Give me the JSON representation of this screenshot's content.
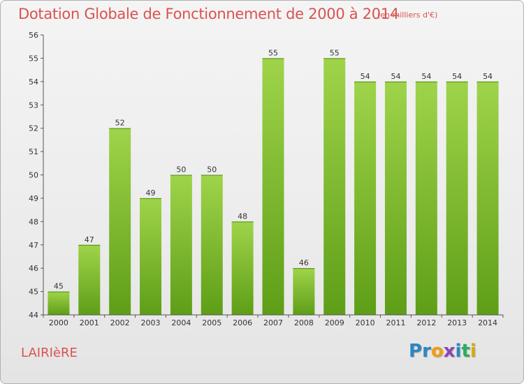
{
  "header": {
    "title": "Dotation Globale de Fonctionnement de 2000 à 2014",
    "subtitle": "(en milliers d'€)"
  },
  "footer": {
    "commune": "LAIRIèRE",
    "brand_letters": [
      "P",
      "r",
      "o",
      "x",
      "i",
      "t",
      "i"
    ],
    "brand_colors": [
      "#2e86c1",
      "#2e86c1",
      "#f39c12",
      "#8e44ad",
      "#2e86c1",
      "#27ae60",
      "#d4ac0d"
    ]
  },
  "colors": {
    "bar_light": "#9fd44a",
    "bar_dark": "#5e9e17",
    "axis": "#555555",
    "grid": "#d0d0d0",
    "text": "#333333"
  },
  "chart_data": {
    "type": "bar",
    "title": "Dotation Globale de Fonctionnement de 2000 à 2014",
    "subtitle": "(en milliers d'€)",
    "categories": [
      "2000",
      "2001",
      "2002",
      "2003",
      "2004",
      "2005",
      "2006",
      "2007",
      "2008",
      "2009",
      "2010",
      "2011",
      "2012",
      "2013",
      "2014"
    ],
    "values": [
      45,
      47,
      52,
      49,
      50,
      50,
      48,
      55,
      46,
      55,
      54,
      54,
      54,
      54,
      54
    ],
    "ylim": [
      44,
      56
    ],
    "yticks": [
      44,
      45,
      46,
      47,
      48,
      49,
      50,
      51,
      52,
      53,
      54,
      55,
      56
    ],
    "xlabel": "",
    "ylabel": "",
    "grid": false
  }
}
